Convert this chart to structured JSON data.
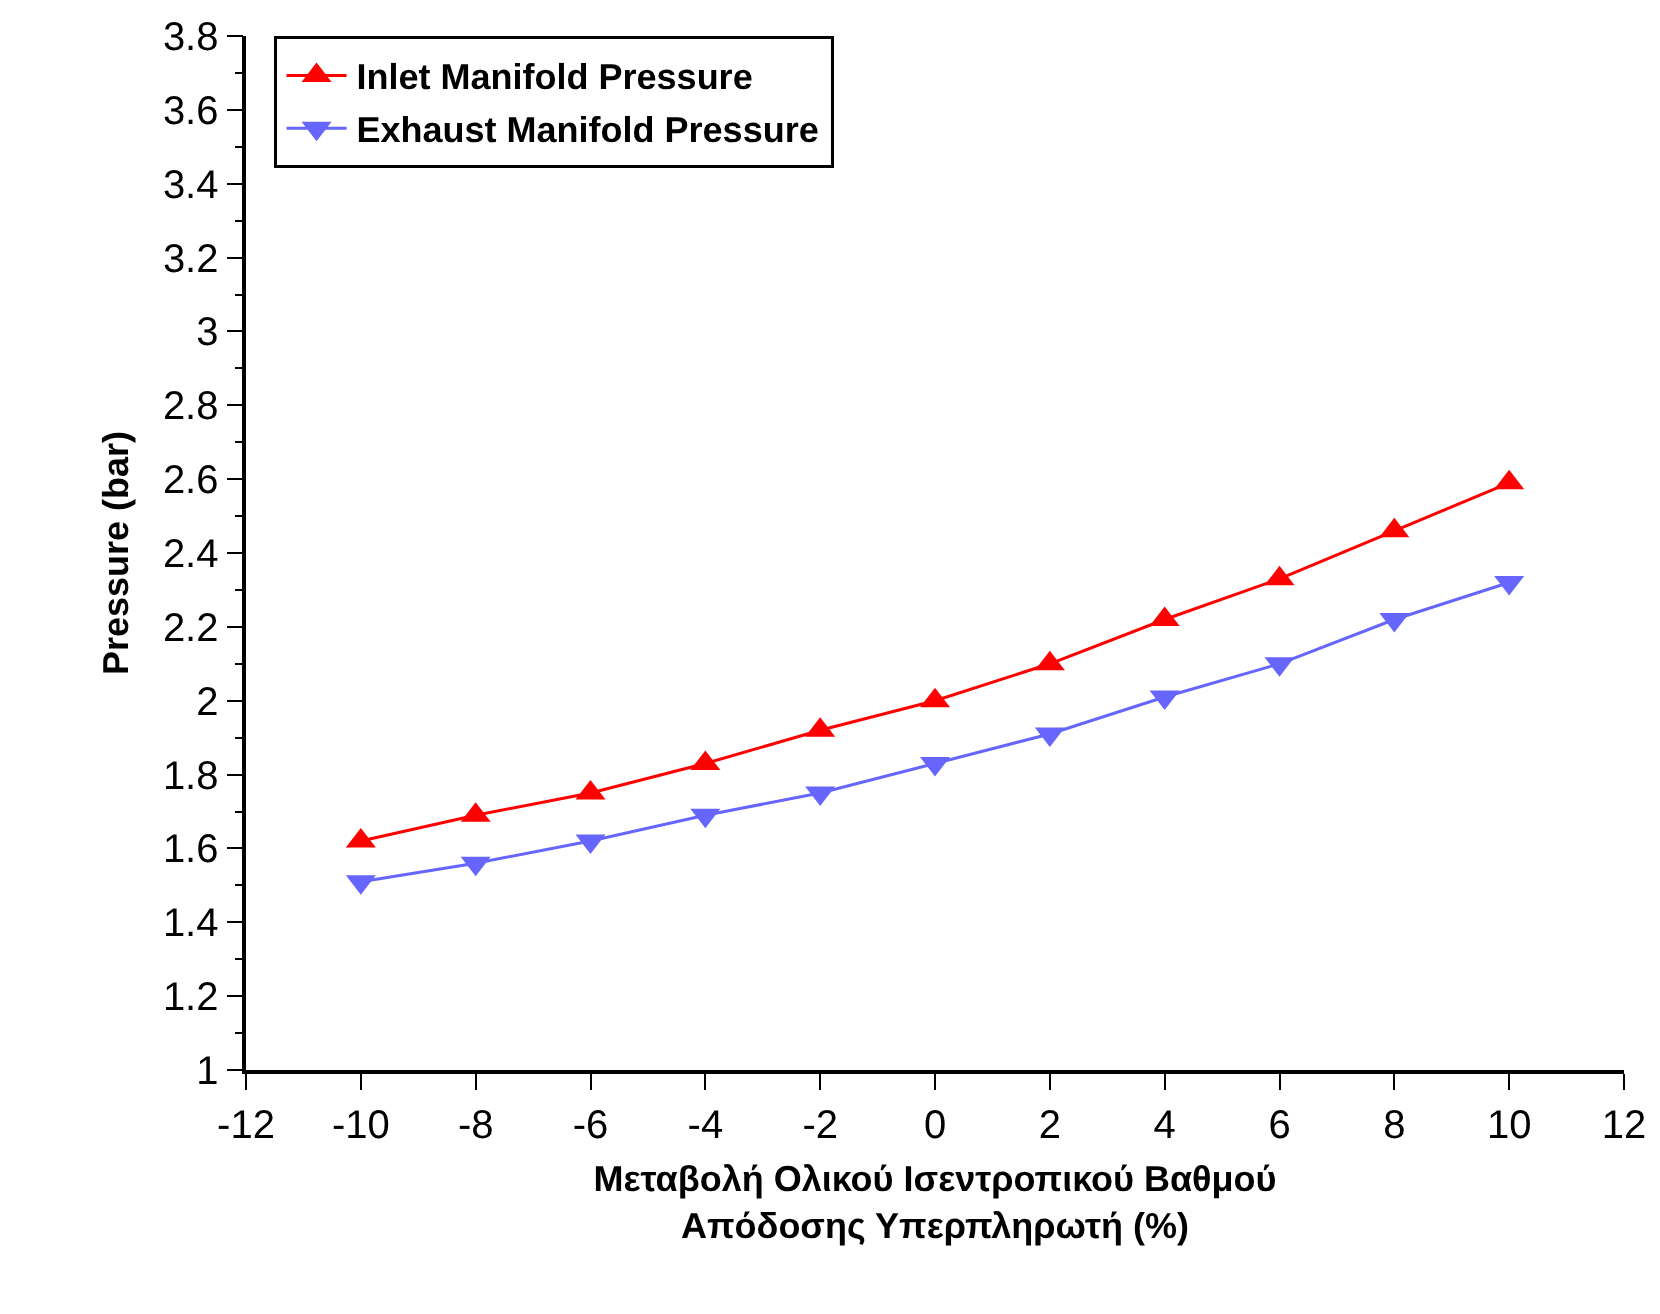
{
  "chart_data": {
    "type": "line",
    "xlabel": "Μεταβολή Ολικού Ισεντροπικού Βαθμού\nΑπόδοσης Υπερπληρωτή (%)",
    "ylabel": "Pressure (bar)",
    "x": [
      -10,
      -8,
      -6,
      -4,
      -2,
      0,
      2,
      4,
      6,
      8,
      10
    ],
    "series": [
      {
        "name": "Inlet Manifold Pressure",
        "color": "#ff0000",
        "marker": "triangle",
        "values": [
          1.62,
          1.69,
          1.75,
          1.83,
          1.92,
          2.0,
          2.1,
          2.22,
          2.33,
          2.46,
          2.59
        ]
      },
      {
        "name": "Exhaust Manifold Pressure",
        "color": "#6666ff",
        "marker": "triangle-down",
        "values": [
          1.51,
          1.56,
          1.62,
          1.69,
          1.75,
          1.83,
          1.91,
          2.01,
          2.1,
          2.22,
          2.32
        ]
      }
    ],
    "xlim": [
      -12,
      12
    ],
    "xticks": [
      -12,
      -10,
      -8,
      -6,
      -4,
      -2,
      0,
      2,
      4,
      6,
      8,
      10,
      12
    ],
    "ylim": [
      1,
      3.8
    ],
    "yticks": [
      1,
      1.2,
      1.4,
      1.6,
      1.8,
      2,
      2.2,
      2.4,
      2.6,
      2.8,
      3,
      3.2,
      3.4,
      3.6,
      3.8
    ],
    "grid": false,
    "legend": "top left",
    "line_style": "solid"
  }
}
